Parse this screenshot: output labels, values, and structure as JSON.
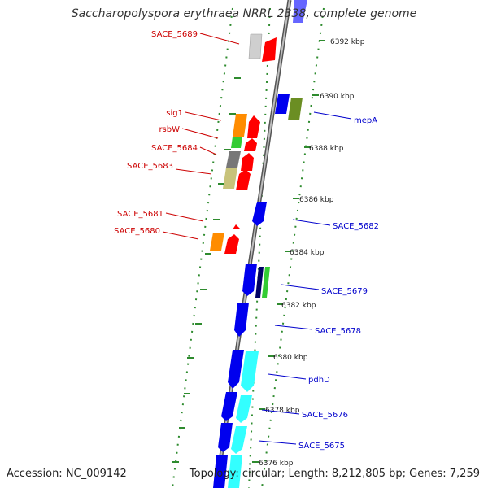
{
  "title": "Saccharopolyspora erythraea NRRL 2338, complete genome",
  "footer": {
    "accession": "Accession: NC_009142",
    "topology": "Topology: circular; Length: 8,212,805 bp; Genes: 7,259"
  },
  "colors": {
    "backbone": "#a9a9a9",
    "dots": "#2e8b2e",
    "forward_label": "#cc0000",
    "reverse_label": "#0000cc",
    "ruler_text": "#222222"
  },
  "ruler": [
    {
      "label": "6392 kbp"
    },
    {
      "label": "6390 kbp"
    },
    {
      "label": "6388 kbp"
    },
    {
      "label": "6386 kbp"
    },
    {
      "label": "6384 kbp"
    },
    {
      "label": "6382 kbp"
    },
    {
      "label": "6380 kbp"
    },
    {
      "label": "6378 kbp"
    },
    {
      "label": "6376 kbp"
    }
  ],
  "forward_genes": [
    {
      "label": "SACE_5689"
    },
    {
      "label": "sig1"
    },
    {
      "label": "rsbW"
    },
    {
      "label": "SACE_5684"
    },
    {
      "label": "SACE_5683"
    },
    {
      "label": "SACE_5681"
    },
    {
      "label": "SACE_5680"
    }
  ],
  "reverse_genes": [
    {
      "label": "mepA"
    },
    {
      "label": "SACE_5682"
    },
    {
      "label": "SACE_5679"
    },
    {
      "label": "SACE_5678"
    },
    {
      "label": "pdhD"
    },
    {
      "label": "SACE_5676"
    },
    {
      "label": "SACE_5675"
    }
  ]
}
